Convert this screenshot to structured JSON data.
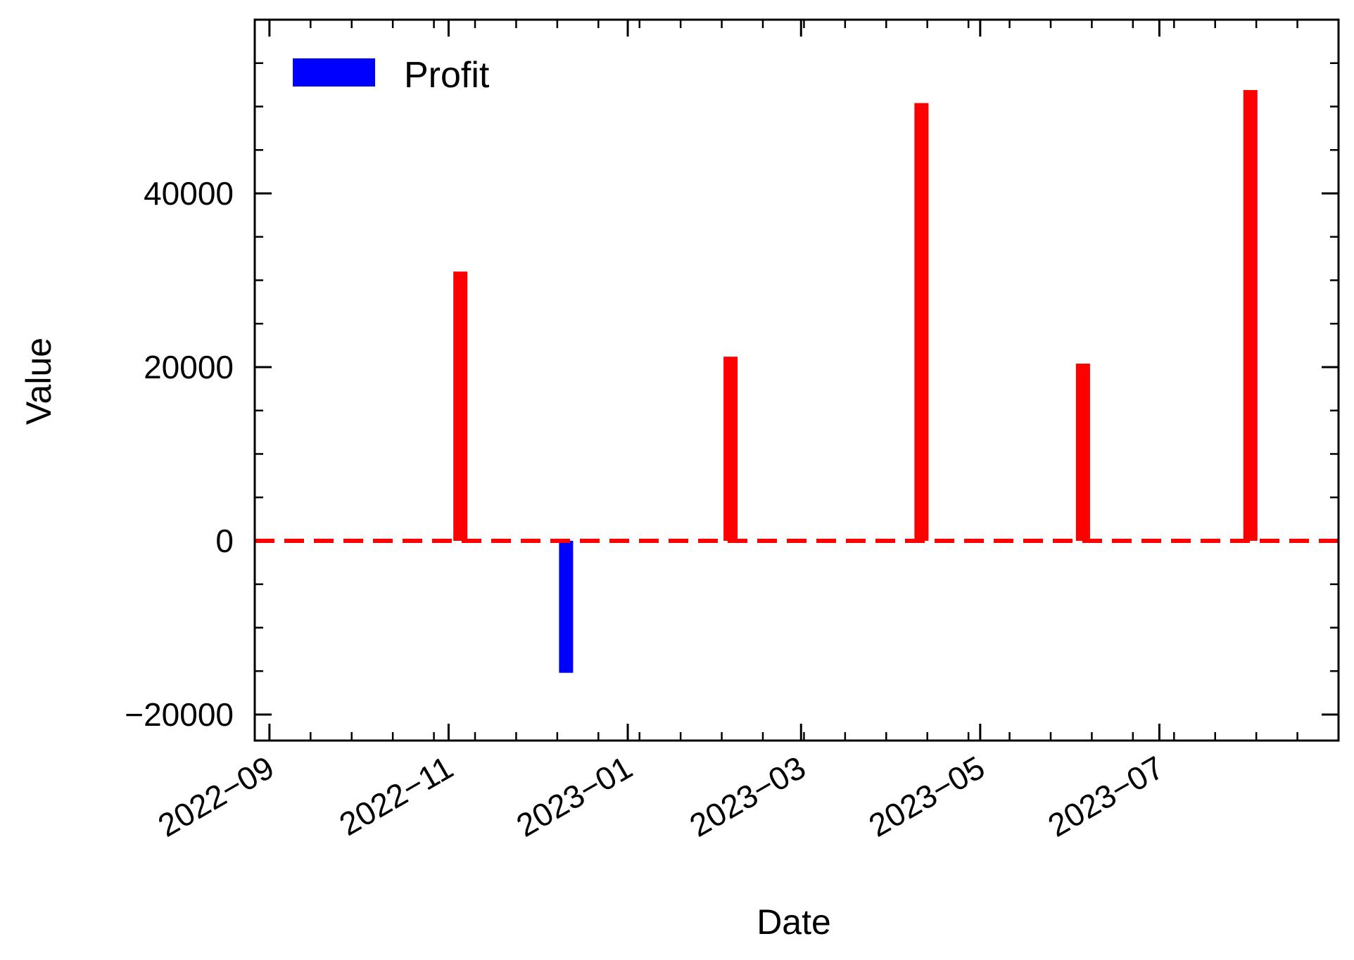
{
  "chart_data": {
    "type": "bar",
    "title": "",
    "xlabel": "Date",
    "ylabel": "Value",
    "x_ticks": [
      "2022−09",
      "2022−11",
      "2023−01",
      "2023−03",
      "2023−05",
      "2023−07"
    ],
    "y_ticks": [
      "−20000",
      "0",
      "20000",
      "40000"
    ],
    "ylim": [
      -23000,
      60000
    ],
    "xlim": [
      "2022-08-27",
      "2023-08-31"
    ],
    "grid": false,
    "legend": {
      "position": "top-left",
      "entries": [
        {
          "label": "Profit",
          "color": "#0000ff"
        }
      ]
    },
    "positive_color": "#ff0000",
    "negative_color": "#0000ff",
    "reference_line": {
      "y": 0,
      "color": "#ff0000",
      "style": "dashed"
    },
    "series": [
      {
        "name": "Profit",
        "points": [
          {
            "date": "2022-11-05",
            "value": 31000
          },
          {
            "date": "2022-12-11",
            "value": -15200
          },
          {
            "date": "2023-02-05",
            "value": 21200
          },
          {
            "date": "2023-04-11",
            "value": 50400
          },
          {
            "date": "2023-06-05",
            "value": 20400
          },
          {
            "date": "2023-08-01",
            "value": 51900
          }
        ]
      }
    ]
  }
}
